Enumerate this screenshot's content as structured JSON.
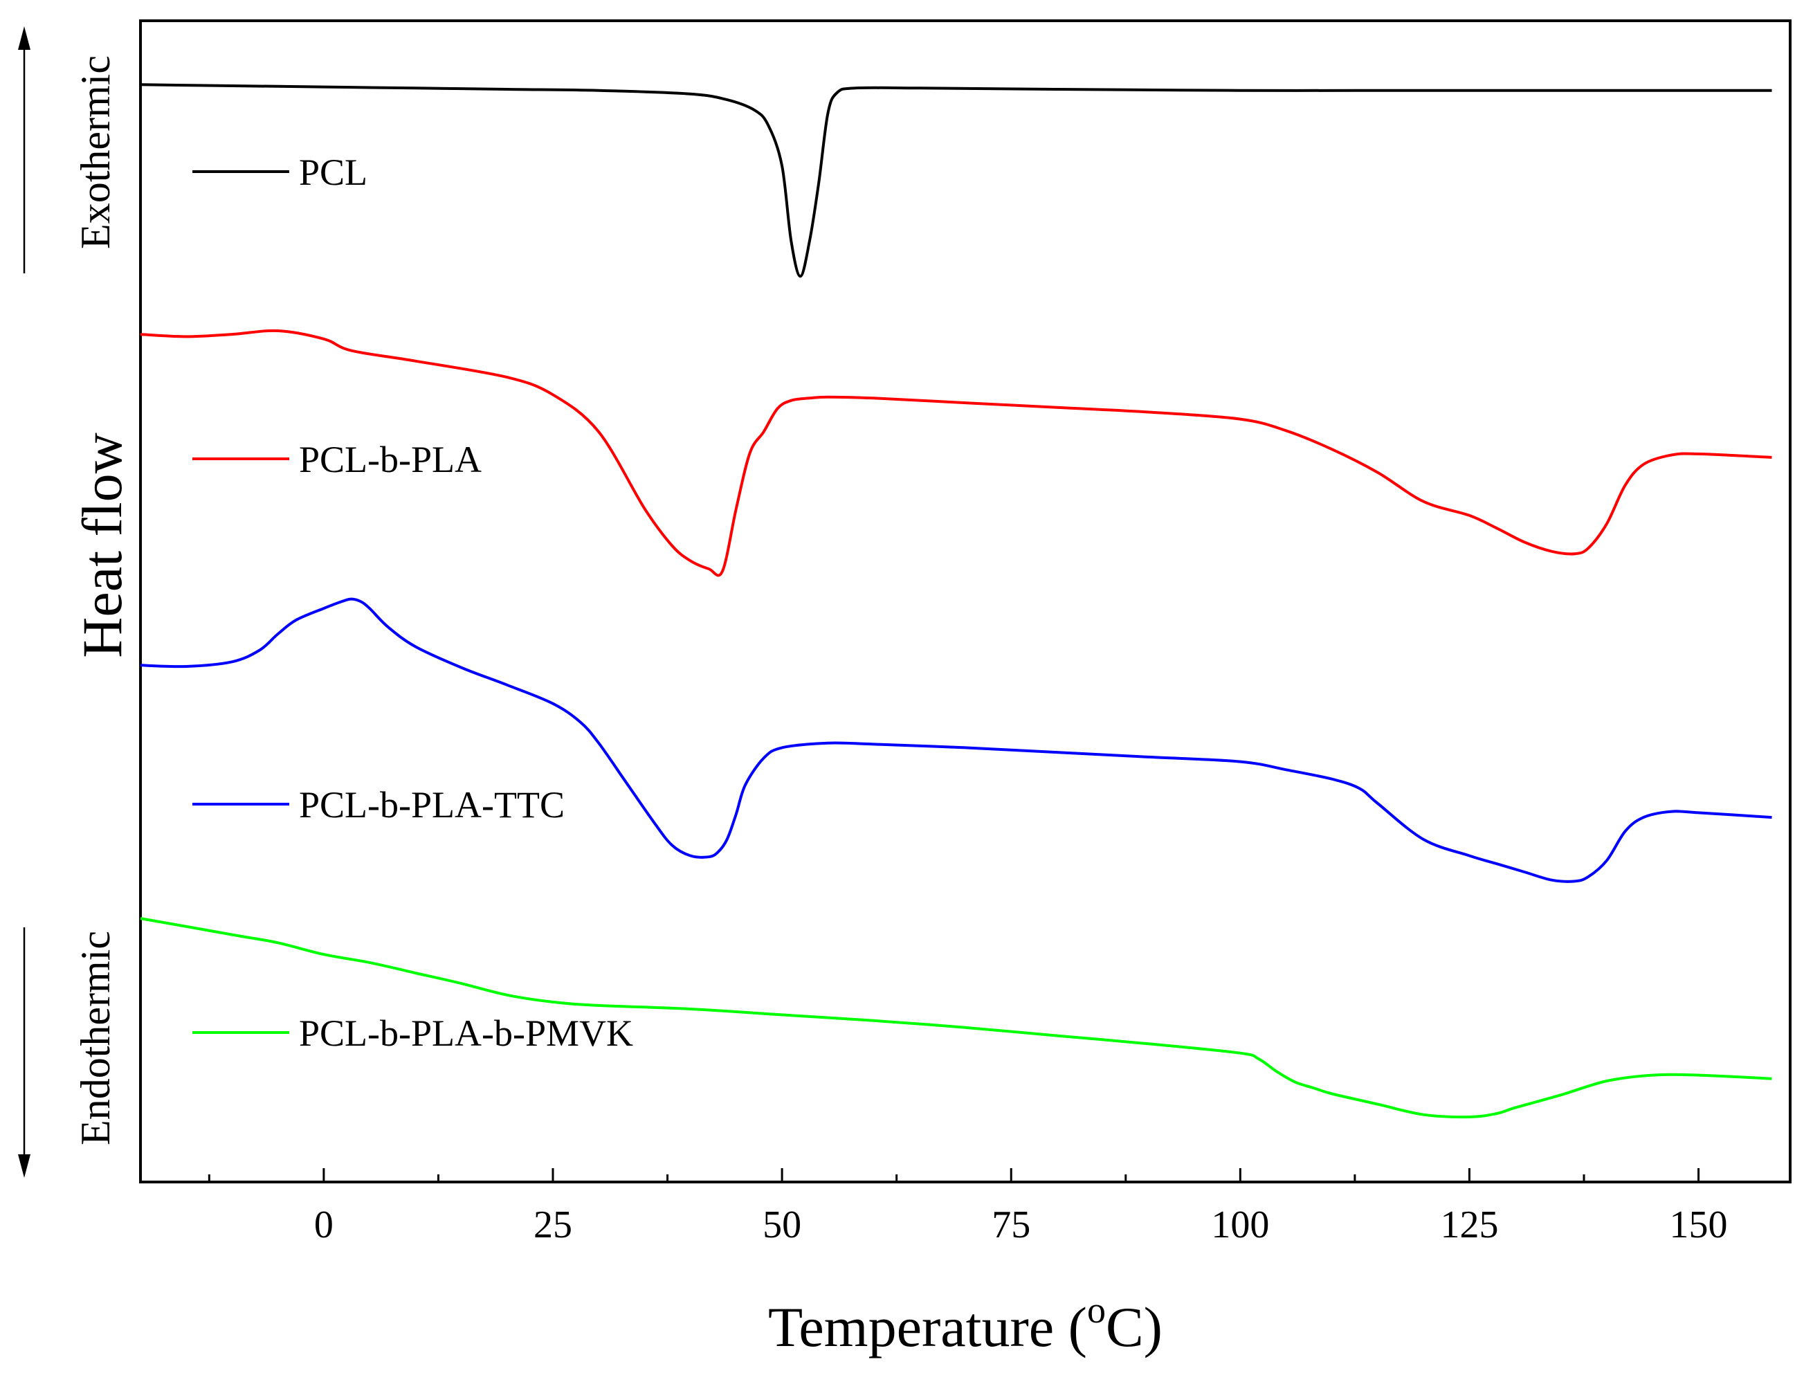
{
  "chart_data": {
    "type": "line",
    "title": "",
    "xlabel": "Temperature (",
    "xlabel_sup": "o",
    "xlabel_unit": "C)",
    "ylabel": "Heat flow",
    "xlim": [
      -20,
      160
    ],
    "ylim": [
      0,
      100
    ],
    "y_ticks_shown": false,
    "grid": false,
    "legend_position": "inline-left",
    "x_ticks": [
      0,
      25,
      50,
      75,
      100,
      125,
      150
    ],
    "x_tick_labels": [
      "0",
      "25",
      "50",
      "75",
      "100",
      "125",
      "150"
    ],
    "x_minor_ticks": [
      -12.5,
      12.5,
      37.5,
      62.5,
      87.5,
      112.5,
      137.5
    ],
    "annotations": {
      "exothermic": "Exothermic",
      "endothermic": "Endothermic"
    },
    "colors": {
      "PCL": "#000000",
      "PCL-b-PLA": "#ff0000",
      "PCL-b-PLA-TTC": "#0000ff",
      "PCL-b-PLA-b-PMVK": "#00ff00"
    },
    "series": [
      {
        "name": "PCL",
        "color": "#000000",
        "x": [
          -20,
          -10,
          0,
          10,
          20,
          30,
          40,
          44,
          47,
          48.5,
          50,
          51,
          52,
          53,
          54,
          55,
          56,
          58,
          65,
          80,
          100,
          120,
          140,
          158
        ],
        "values": [
          94.5,
          94.4,
          94.3,
          94.2,
          94.1,
          94.0,
          93.7,
          93.2,
          92.3,
          91.0,
          87.5,
          81.0,
          78.0,
          81.0,
          86.0,
          92.0,
          93.8,
          94.2,
          94.2,
          94.1,
          94.0,
          94.0,
          94.0,
          94.0
        ]
      },
      {
        "name": "PCL-b-PLA",
        "color": "#ff0000",
        "x": [
          -20,
          -15,
          -10,
          -5,
          0,
          3,
          10,
          20,
          25,
          30,
          35,
          38,
          40,
          42,
          43.5,
          45,
          46.5,
          48,
          49.5,
          51,
          53,
          55,
          60,
          70,
          80,
          90,
          100,
          105,
          110,
          115,
          120,
          125,
          128,
          131,
          134,
          136.5,
          138,
          140,
          142,
          144,
          147,
          150,
          158
        ],
        "values": [
          73.0,
          72.8,
          73.0,
          73.3,
          72.6,
          71.6,
          70.7,
          69.3,
          67.8,
          64.6,
          58.0,
          54.8,
          53.5,
          52.8,
          52.6,
          58.0,
          62.8,
          64.6,
          66.6,
          67.3,
          67.5,
          67.6,
          67.5,
          67.1,
          66.7,
          66.3,
          65.7,
          64.7,
          63.1,
          61.1,
          58.6,
          57.4,
          56.3,
          55.1,
          54.3,
          54.1,
          54.6,
          56.7,
          60.0,
          61.8,
          62.6,
          62.7,
          62.4
        ]
      },
      {
        "name": "PCL-b-PLA-TTC",
        "color": "#0000ff",
        "x": [
          -20,
          -15,
          -10,
          -7,
          -5,
          -3,
          0,
          2,
          3,
          4,
          5,
          7,
          10,
          15,
          20,
          25,
          28,
          30,
          33,
          36,
          38,
          40,
          42,
          43,
          44,
          45,
          46,
          48,
          50,
          55,
          60,
          70,
          80,
          90,
          100,
          105,
          110,
          113,
          115,
          120,
          125,
          128,
          131,
          134,
          136.5,
          138,
          140,
          142,
          144,
          147,
          150,
          158
        ],
        "values": [
          44.5,
          44.4,
          44.8,
          45.8,
          47.2,
          48.4,
          49.4,
          50.0,
          50.2,
          50.0,
          49.4,
          47.8,
          46.1,
          44.3,
          42.8,
          41.2,
          39.6,
          37.8,
          34.4,
          31.0,
          29.0,
          28.1,
          28.0,
          28.4,
          29.5,
          31.7,
          34.2,
          36.5,
          37.4,
          37.8,
          37.7,
          37.4,
          37.0,
          36.6,
          36.2,
          35.5,
          34.7,
          33.9,
          32.6,
          29.5,
          28.1,
          27.4,
          26.7,
          26.0,
          25.9,
          26.3,
          27.7,
          30.2,
          31.4,
          31.9,
          31.8,
          31.4
        ]
      },
      {
        "name": "PCL-b-PLA-b-PMVK",
        "color": "#00ff00",
        "x": [
          -20,
          -10,
          -5,
          0,
          5,
          10,
          15,
          20,
          25,
          30,
          40,
          50,
          60,
          70,
          80,
          90,
          100,
          102,
          104,
          106,
          108,
          110,
          115,
          120,
          125,
          128,
          130,
          135,
          140,
          145,
          150,
          158
        ],
        "values": [
          22.7,
          21.3,
          20.6,
          19.6,
          18.9,
          18.0,
          17.1,
          16.1,
          15.5,
          15.2,
          14.9,
          14.4,
          13.9,
          13.3,
          12.6,
          11.9,
          11.1,
          10.6,
          9.5,
          8.6,
          8.1,
          7.6,
          6.7,
          5.8,
          5.6,
          5.9,
          6.4,
          7.5,
          8.7,
          9.2,
          9.2,
          8.9
        ]
      }
    ]
  }
}
